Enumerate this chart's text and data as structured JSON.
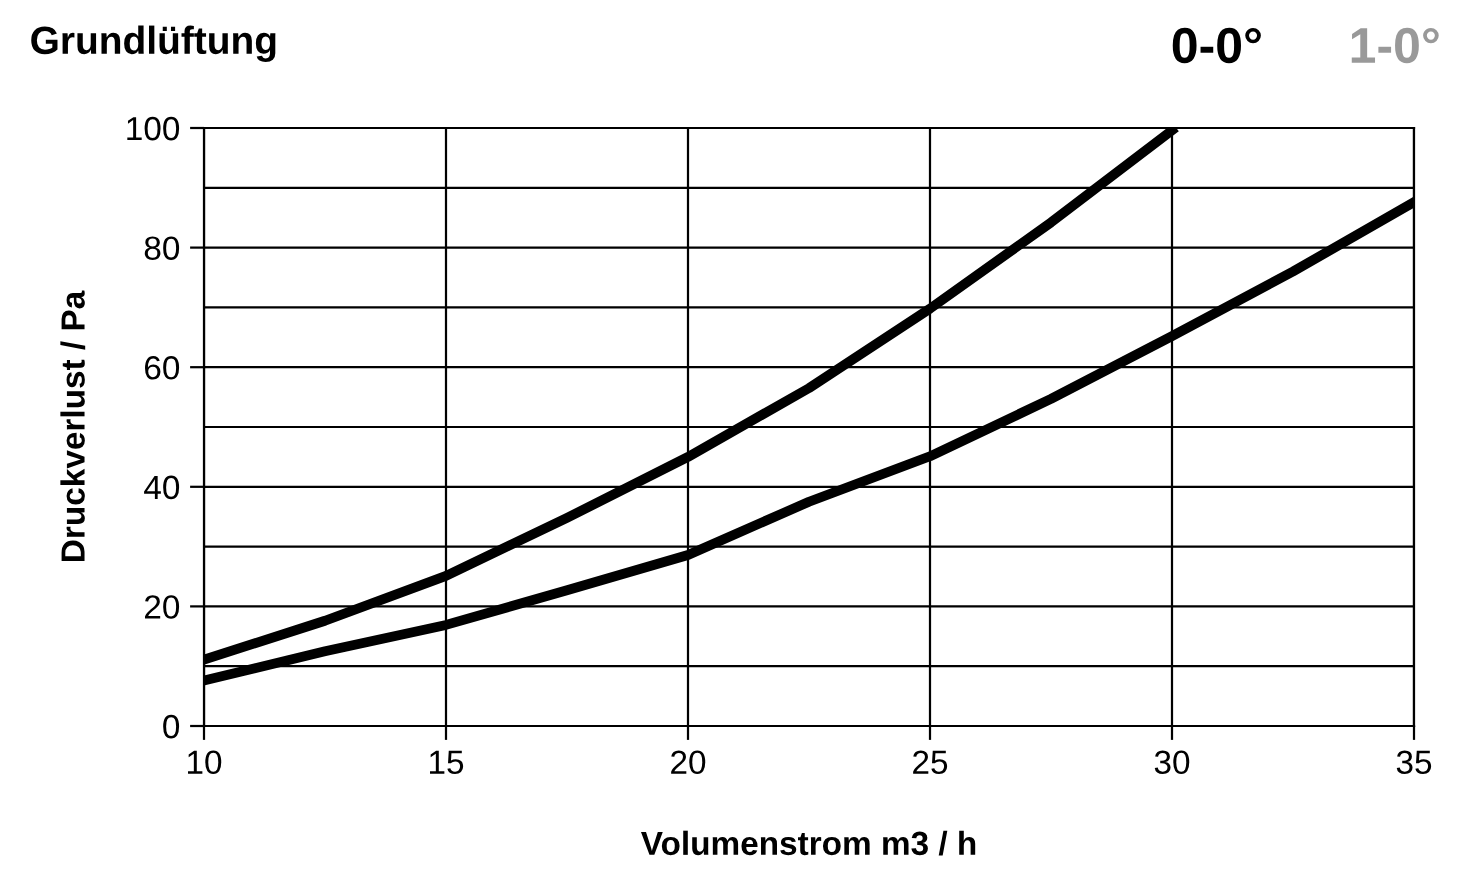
{
  "chart_data": {
    "type": "line",
    "title": "Grundlüftung",
    "xlabel": "Volumenstrom m3 / h",
    "ylabel": "Druckverlust / Pa",
    "annotations": [
      "0-0°",
      "1-0°"
    ],
    "x": [
      10,
      12.5,
      15,
      17.5,
      20,
      22.5,
      25,
      27.5,
      30,
      32.5,
      35
    ],
    "series": [
      {
        "color": "#000000",
        "values": [
          11.1,
          17.6,
          25.1,
          34.8,
          45,
          56.5,
          69.8,
          84.2,
          99.6,
          null,
          null
        ]
      },
      {
        "color": "#000000",
        "values": [
          7.6,
          12.5,
          16.9,
          22.7,
          28.6,
          37.5,
          45.1,
          54.7,
          65.2,
          76,
          87.6
        ]
      }
    ],
    "xlim": [
      10,
      35
    ],
    "ylim": [
      0,
      100
    ],
    "xticks": [
      10,
      15,
      20,
      25,
      30,
      35
    ],
    "yticks": [
      0,
      {
        "value": 10,
        "label": null
      },
      20,
      {
        "value": 30,
        "label": null
      },
      40,
      {
        "value": 50,
        "label": null
      },
      60,
      {
        "value": 70,
        "label": null
      },
      80,
      {
        "value": 90,
        "label": null
      },
      100
    ],
    "grid": true,
    "legend": false,
    "marker": "none",
    "line_style": "solid"
  }
}
